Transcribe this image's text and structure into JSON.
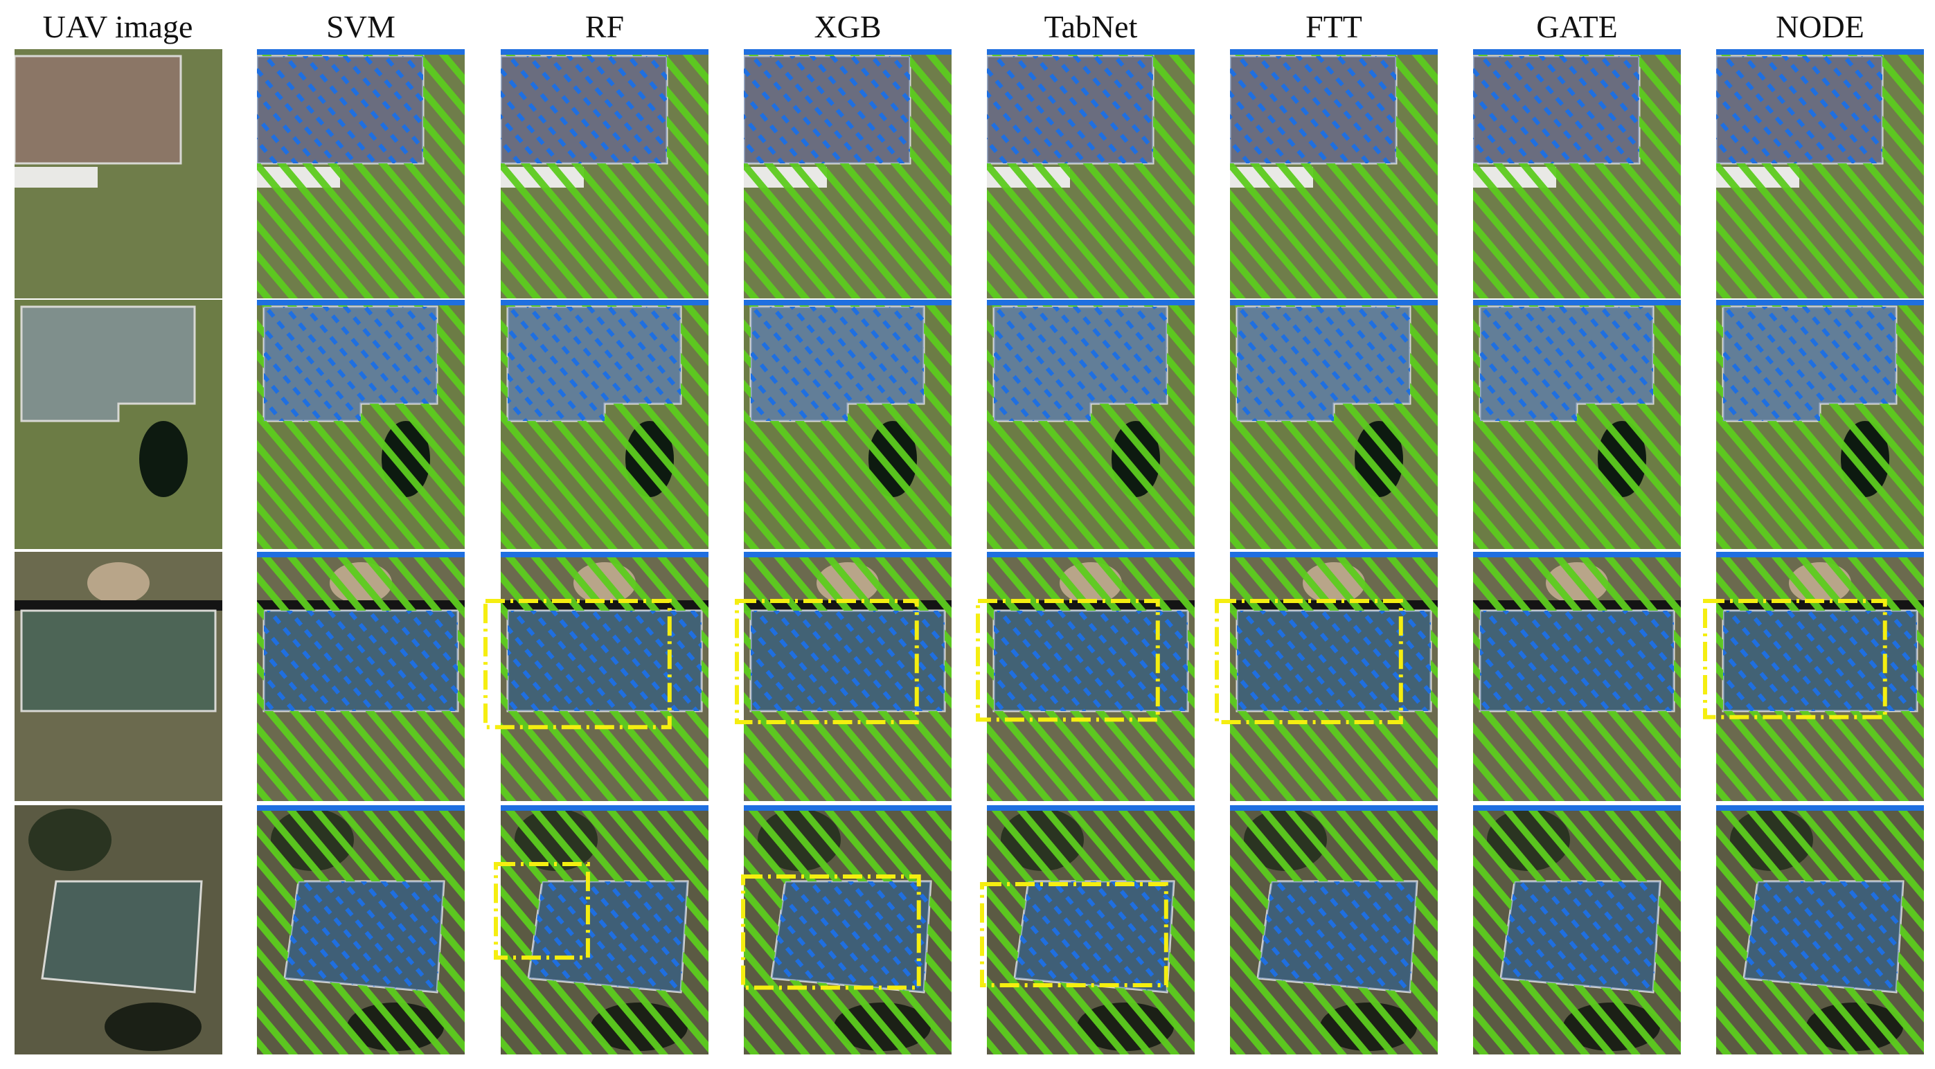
{
  "figure": {
    "columns": [
      {
        "key": "uav",
        "label": "UAV image",
        "kind": "photo"
      },
      {
        "key": "svm",
        "label": "SVM",
        "kind": "result"
      },
      {
        "key": "rf",
        "label": "RF",
        "kind": "result"
      },
      {
        "key": "xgb",
        "label": "XGB",
        "kind": "result"
      },
      {
        "key": "tabnet",
        "label": "TabNet",
        "kind": "result"
      },
      {
        "key": "ftt",
        "label": "FTT",
        "kind": "result"
      },
      {
        "key": "gate",
        "label": "GATE",
        "kind": "result"
      },
      {
        "key": "node",
        "label": "NODE",
        "kind": "result"
      }
    ],
    "rows": 4,
    "legend_colors": {
      "grass_hatch": "#5dcc1f",
      "roof_hatch": "#1f6fe0",
      "highlight_box": "#f5ee10"
    },
    "scenes": [
      {
        "roof_color": "#8b7666",
        "ground_color": "#6f7d4a",
        "style": "brown-roof"
      },
      {
        "roof_color": "#7f8f8c",
        "ground_color": "#6c7c45",
        "style": "gray-roof"
      },
      {
        "roof_color": "#4d6556",
        "ground_color": "#6b6a4e",
        "style": "green-roof"
      },
      {
        "roof_color": "#49605a",
        "ground_color": "#5b5a43",
        "style": "dark-roof"
      }
    ],
    "highlights": [
      {
        "row": 3,
        "column": "rf"
      },
      {
        "row": 3,
        "column": "xgb"
      },
      {
        "row": 3,
        "column": "tabnet"
      },
      {
        "row": 3,
        "column": "ftt"
      },
      {
        "row": 3,
        "column": "node"
      },
      {
        "row": 4,
        "column": "rf"
      },
      {
        "row": 4,
        "column": "xgb"
      },
      {
        "row": 4,
        "column": "tabnet"
      }
    ]
  }
}
